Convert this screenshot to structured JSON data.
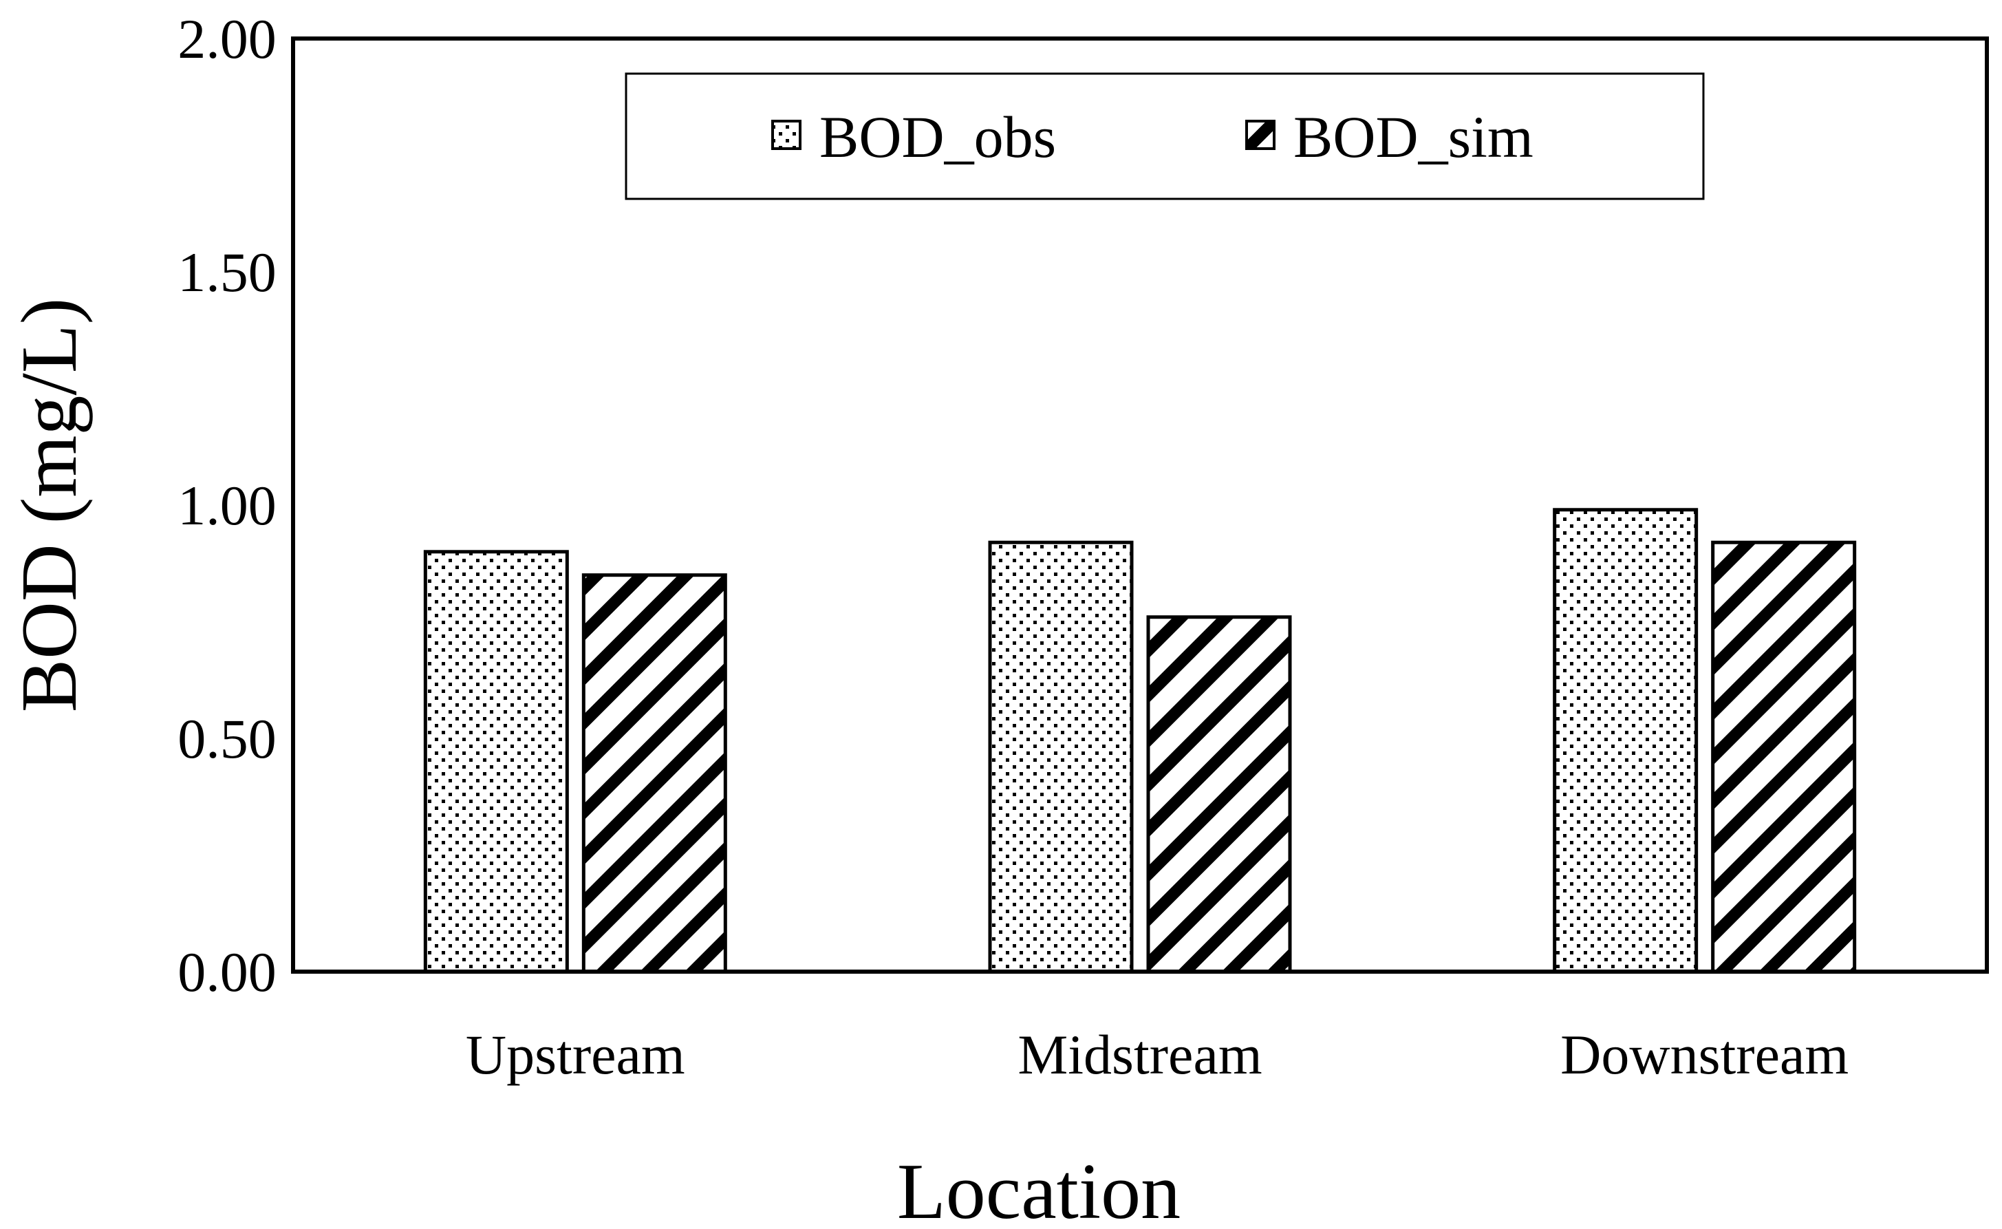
{
  "chart_data": {
    "type": "bar",
    "title": "",
    "xlabel": "Location",
    "ylabel": "BOD (mg/L)",
    "ylim": [
      0,
      2.0
    ],
    "yticks": [
      "0.00",
      "0.50",
      "1.00",
      "1.50",
      "2.00"
    ],
    "categories": [
      "Upstream",
      "Midstream",
      "Downstream"
    ],
    "series": [
      {
        "name": "BOD_obs",
        "pattern": "dots",
        "values": [
          0.9,
          0.92,
          0.99
        ]
      },
      {
        "name": "BOD_sim",
        "pattern": "hatch",
        "values": [
          0.85,
          0.76,
          0.92
        ]
      }
    ],
    "grid": false,
    "legend_position": "top-center",
    "colors": {
      "stroke": "#000000",
      "fill": "#ffffff"
    }
  }
}
